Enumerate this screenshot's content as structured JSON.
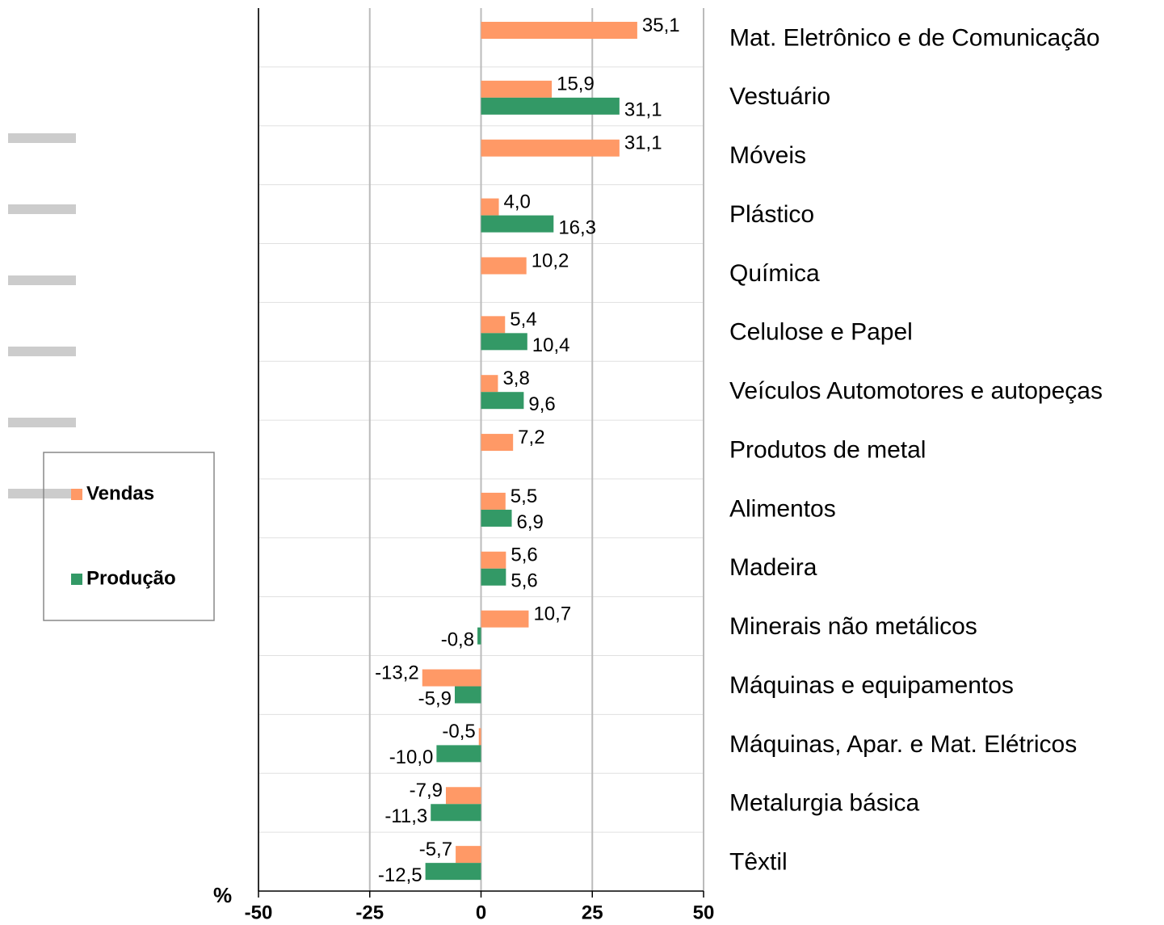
{
  "chart_data": {
    "type": "hbar",
    "x_label": "%",
    "categories": [
      "Mat. Eletrônico e de Comunicação",
      "Vestuário",
      "Móveis",
      "Plástico",
      "Química",
      "Celulose e Papel",
      "Veículos Automotores e autopeças",
      "Produtos de metal",
      "Alimentos",
      "Madeira",
      "Minerais não metálicos",
      "Máquinas e equipamentos",
      "Máquinas, Apar. e Mat. Elétricos",
      "Metalurgia básica",
      "Têxtil"
    ],
    "series": [
      {
        "name": "Vendas",
        "color": "#ff9966",
        "values": [
          35.1,
          15.9,
          31.1,
          4.0,
          10.2,
          5.4,
          3.8,
          7.2,
          5.5,
          5.6,
          10.7,
          -13.2,
          -0.5,
          -7.9,
          -5.7
        ],
        "value_labels": [
          "35,1",
          "15,9",
          "31,1",
          "4,0",
          "10,2",
          "5,4",
          "3,8",
          "7,2",
          "5,5",
          "5,6",
          "10,7",
          "-13,2",
          "-0,5",
          "-7,9",
          "-5,7"
        ]
      },
      {
        "name": "Produção",
        "color": "#339966",
        "values": [
          null,
          31.1,
          null,
          16.3,
          null,
          10.4,
          9.6,
          null,
          6.9,
          5.6,
          -0.8,
          -5.9,
          -10.0,
          -11.3,
          -12.5
        ],
        "value_labels": [
          null,
          "31,1",
          null,
          "16,3",
          null,
          "10,4",
          "9,6",
          null,
          "6,9",
          "5,6",
          "-0,8",
          "-5,9",
          "-10,0",
          "-11,3",
          "-12,5"
        ]
      }
    ],
    "xlim": [
      -50,
      50
    ],
    "xticks": [
      -50,
      -25,
      0,
      25,
      50
    ],
    "grid": true,
    "legend": "left"
  }
}
